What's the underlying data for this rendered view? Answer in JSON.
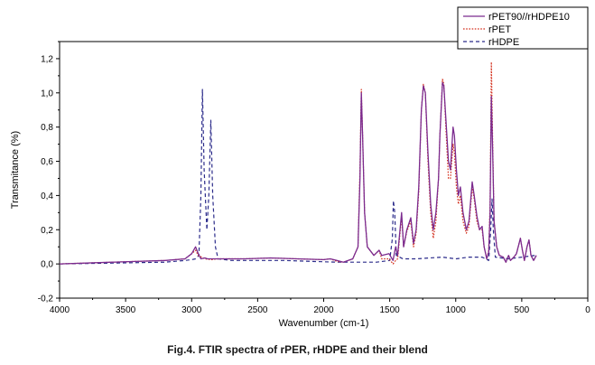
{
  "figure": {
    "caption": "Fig.4. FTIR spectra of rPER, rHDPE and their blend"
  },
  "chart_data": {
    "type": "line",
    "title": "",
    "xlabel": "Wavenumber (cm-1)",
    "ylabel": "Transmitance (%)",
    "xlim": [
      4000,
      0
    ],
    "ylim": [
      -0.2,
      1.3
    ],
    "x_reversed": true,
    "x_ticks": [
      4000,
      3500,
      3000,
      2500,
      2000,
      1500,
      1000,
      500,
      0
    ],
    "y_ticks": [
      -0.2,
      0.0,
      0.2,
      0.4,
      0.6,
      0.8,
      1.0,
      1.2
    ],
    "x_tick_labels": [
      "4000",
      "3500",
      "3000",
      "2500",
      "2000",
      "1500",
      "1000",
      "500",
      "0"
    ],
    "y_tick_labels": [
      "-0,2",
      "0,0",
      "0,2",
      "0,4",
      "0,6",
      "0,8",
      "1,0",
      "1,2"
    ],
    "grid": false,
    "legend_position": "top-right",
    "series": [
      {
        "name": "rPET90//rHDPE10",
        "color": "#7b2b8f",
        "dash": "solid",
        "points": [
          [
            4000,
            0.0
          ],
          [
            3600,
            0.01
          ],
          [
            3200,
            0.02
          ],
          [
            3050,
            0.03
          ],
          [
            3000,
            0.06
          ],
          [
            2970,
            0.1
          ],
          [
            2950,
            0.06
          ],
          [
            2930,
            0.03
          ],
          [
            2900,
            0.035
          ],
          [
            2880,
            0.03
          ],
          [
            2850,
            0.03
          ],
          [
            2800,
            0.03
          ],
          [
            2600,
            0.03
          ],
          [
            2400,
            0.035
          ],
          [
            2200,
            0.03
          ],
          [
            2000,
            0.025
          ],
          [
            1950,
            0.03
          ],
          [
            1900,
            0.02
          ],
          [
            1850,
            0.01
          ],
          [
            1780,
            0.03
          ],
          [
            1740,
            0.1
          ],
          [
            1725,
            0.5
          ],
          [
            1715,
            1.0
          ],
          [
            1705,
            0.75
          ],
          [
            1690,
            0.3
          ],
          [
            1670,
            0.1
          ],
          [
            1620,
            0.05
          ],
          [
            1580,
            0.08
          ],
          [
            1560,
            0.05
          ],
          [
            1505,
            0.06
          ],
          [
            1475,
            0.02
          ],
          [
            1455,
            0.1
          ],
          [
            1440,
            0.05
          ],
          [
            1410,
            0.3
          ],
          [
            1395,
            0.1
          ],
          [
            1370,
            0.2
          ],
          [
            1340,
            0.27
          ],
          [
            1320,
            0.12
          ],
          [
            1300,
            0.2
          ],
          [
            1280,
            0.45
          ],
          [
            1260,
            0.9
          ],
          [
            1245,
            1.04
          ],
          [
            1230,
            1.0
          ],
          [
            1210,
            0.65
          ],
          [
            1190,
            0.35
          ],
          [
            1170,
            0.2
          ],
          [
            1150,
            0.3
          ],
          [
            1130,
            0.5
          ],
          [
            1120,
            0.75
          ],
          [
            1100,
            1.06
          ],
          [
            1090,
            1.04
          ],
          [
            1075,
            0.85
          ],
          [
            1055,
            0.6
          ],
          [
            1040,
            0.55
          ],
          [
            1020,
            0.8
          ],
          [
            1010,
            0.75
          ],
          [
            995,
            0.55
          ],
          [
            980,
            0.4
          ],
          [
            965,
            0.45
          ],
          [
            945,
            0.3
          ],
          [
            920,
            0.2
          ],
          [
            900,
            0.25
          ],
          [
            875,
            0.48
          ],
          [
            860,
            0.4
          ],
          [
            840,
            0.28
          ],
          [
            820,
            0.2
          ],
          [
            800,
            0.22
          ],
          [
            785,
            0.1
          ],
          [
            765,
            0.03
          ],
          [
            750,
            0.07
          ],
          [
            740,
            0.3
          ],
          [
            730,
            0.98
          ],
          [
            720,
            0.65
          ],
          [
            710,
            0.25
          ],
          [
            690,
            0.1
          ],
          [
            670,
            0.05
          ],
          [
            640,
            0.04
          ],
          [
            620,
            0.01
          ],
          [
            600,
            0.05
          ],
          [
            585,
            0.02
          ],
          [
            560,
            0.04
          ],
          [
            540,
            0.06
          ],
          [
            510,
            0.15
          ],
          [
            495,
            0.08
          ],
          [
            480,
            0.02
          ],
          [
            460,
            0.1
          ],
          [
            445,
            0.14
          ],
          [
            430,
            0.05
          ],
          [
            410,
            0.02
          ],
          [
            390,
            0.05
          ]
        ]
      },
      {
        "name": "rPET",
        "color": "#d32f1c",
        "dash": "dotted",
        "points": [
          [
            4000,
            0.0
          ],
          [
            3600,
            0.01
          ],
          [
            3200,
            0.02
          ],
          [
            3050,
            0.03
          ],
          [
            3000,
            0.06
          ],
          [
            2970,
            0.08
          ],
          [
            2950,
            0.05
          ],
          [
            2900,
            0.03
          ],
          [
            2850,
            0.025
          ],
          [
            2800,
            0.03
          ],
          [
            2600,
            0.03
          ],
          [
            2400,
            0.035
          ],
          [
            2200,
            0.03
          ],
          [
            2000,
            0.025
          ],
          [
            1950,
            0.03
          ],
          [
            1900,
            0.015
          ],
          [
            1850,
            0.01
          ],
          [
            1780,
            0.03
          ],
          [
            1740,
            0.1
          ],
          [
            1725,
            0.55
          ],
          [
            1715,
            1.02
          ],
          [
            1705,
            0.75
          ],
          [
            1690,
            0.3
          ],
          [
            1670,
            0.1
          ],
          [
            1620,
            0.05
          ],
          [
            1580,
            0.08
          ],
          [
            1560,
            0.03
          ],
          [
            1505,
            0.03
          ],
          [
            1475,
            0.0
          ],
          [
            1455,
            0.02
          ],
          [
            1440,
            0.03
          ],
          [
            1410,
            0.28
          ],
          [
            1395,
            0.1
          ],
          [
            1370,
            0.19
          ],
          [
            1340,
            0.25
          ],
          [
            1320,
            0.1
          ],
          [
            1300,
            0.18
          ],
          [
            1280,
            0.42
          ],
          [
            1260,
            0.9
          ],
          [
            1245,
            1.05
          ],
          [
            1230,
            1.0
          ],
          [
            1210,
            0.6
          ],
          [
            1190,
            0.3
          ],
          [
            1170,
            0.15
          ],
          [
            1150,
            0.25
          ],
          [
            1130,
            0.5
          ],
          [
            1120,
            0.75
          ],
          [
            1100,
            1.08
          ],
          [
            1090,
            1.05
          ],
          [
            1075,
            0.8
          ],
          [
            1055,
            0.5
          ],
          [
            1040,
            0.5
          ],
          [
            1020,
            0.7
          ],
          [
            1010,
            0.65
          ],
          [
            995,
            0.45
          ],
          [
            980,
            0.35
          ],
          [
            965,
            0.4
          ],
          [
            945,
            0.25
          ],
          [
            920,
            0.18
          ],
          [
            900,
            0.22
          ],
          [
            875,
            0.45
          ],
          [
            860,
            0.38
          ],
          [
            840,
            0.25
          ],
          [
            820,
            0.2
          ],
          [
            800,
            0.2
          ],
          [
            785,
            0.1
          ],
          [
            765,
            0.03
          ],
          [
            750,
            0.08
          ],
          [
            740,
            0.35
          ],
          [
            730,
            1.18
          ],
          [
            720,
            0.7
          ],
          [
            710,
            0.25
          ],
          [
            690,
            0.1
          ],
          [
            670,
            0.05
          ],
          [
            640,
            0.04
          ],
          [
            620,
            0.01
          ],
          [
            600,
            0.05
          ],
          [
            585,
            0.02
          ],
          [
            560,
            0.04
          ],
          [
            540,
            0.06
          ],
          [
            510,
            0.15
          ],
          [
            495,
            0.08
          ],
          [
            480,
            0.02
          ],
          [
            460,
            0.1
          ],
          [
            445,
            0.14
          ],
          [
            430,
            0.05
          ],
          [
            410,
            0.02
          ],
          [
            390,
            0.05
          ]
        ]
      },
      {
        "name": "rHDPE",
        "color": "#2b2b8a",
        "dash": "dashed",
        "points": [
          [
            4000,
            0.0
          ],
          [
            3600,
            0.005
          ],
          [
            3200,
            0.01
          ],
          [
            3050,
            0.02
          ],
          [
            3000,
            0.025
          ],
          [
            2970,
            0.03
          ],
          [
            2945,
            0.05
          ],
          [
            2930,
            0.4
          ],
          [
            2918,
            1.02
          ],
          [
            2905,
            0.55
          ],
          [
            2885,
            0.2
          ],
          [
            2870,
            0.4
          ],
          [
            2855,
            0.84
          ],
          [
            2840,
            0.4
          ],
          [
            2820,
            0.1
          ],
          [
            2800,
            0.03
          ],
          [
            2700,
            0.02
          ],
          [
            2500,
            0.02
          ],
          [
            2300,
            0.02
          ],
          [
            2100,
            0.015
          ],
          [
            1900,
            0.01
          ],
          [
            1700,
            0.01
          ],
          [
            1600,
            0.01
          ],
          [
            1500,
            0.02
          ],
          [
            1480,
            0.15
          ],
          [
            1472,
            0.37
          ],
          [
            1462,
            0.3
          ],
          [
            1450,
            0.05
          ],
          [
            1400,
            0.03
          ],
          [
            1300,
            0.03
          ],
          [
            1100,
            0.04
          ],
          [
            1000,
            0.03
          ],
          [
            900,
            0.04
          ],
          [
            800,
            0.04
          ],
          [
            750,
            0.02
          ],
          [
            735,
            0.2
          ],
          [
            725,
            0.38
          ],
          [
            715,
            0.2
          ],
          [
            700,
            0.04
          ],
          [
            600,
            0.03
          ],
          [
            500,
            0.04
          ],
          [
            400,
            0.05
          ]
        ]
      }
    ]
  }
}
